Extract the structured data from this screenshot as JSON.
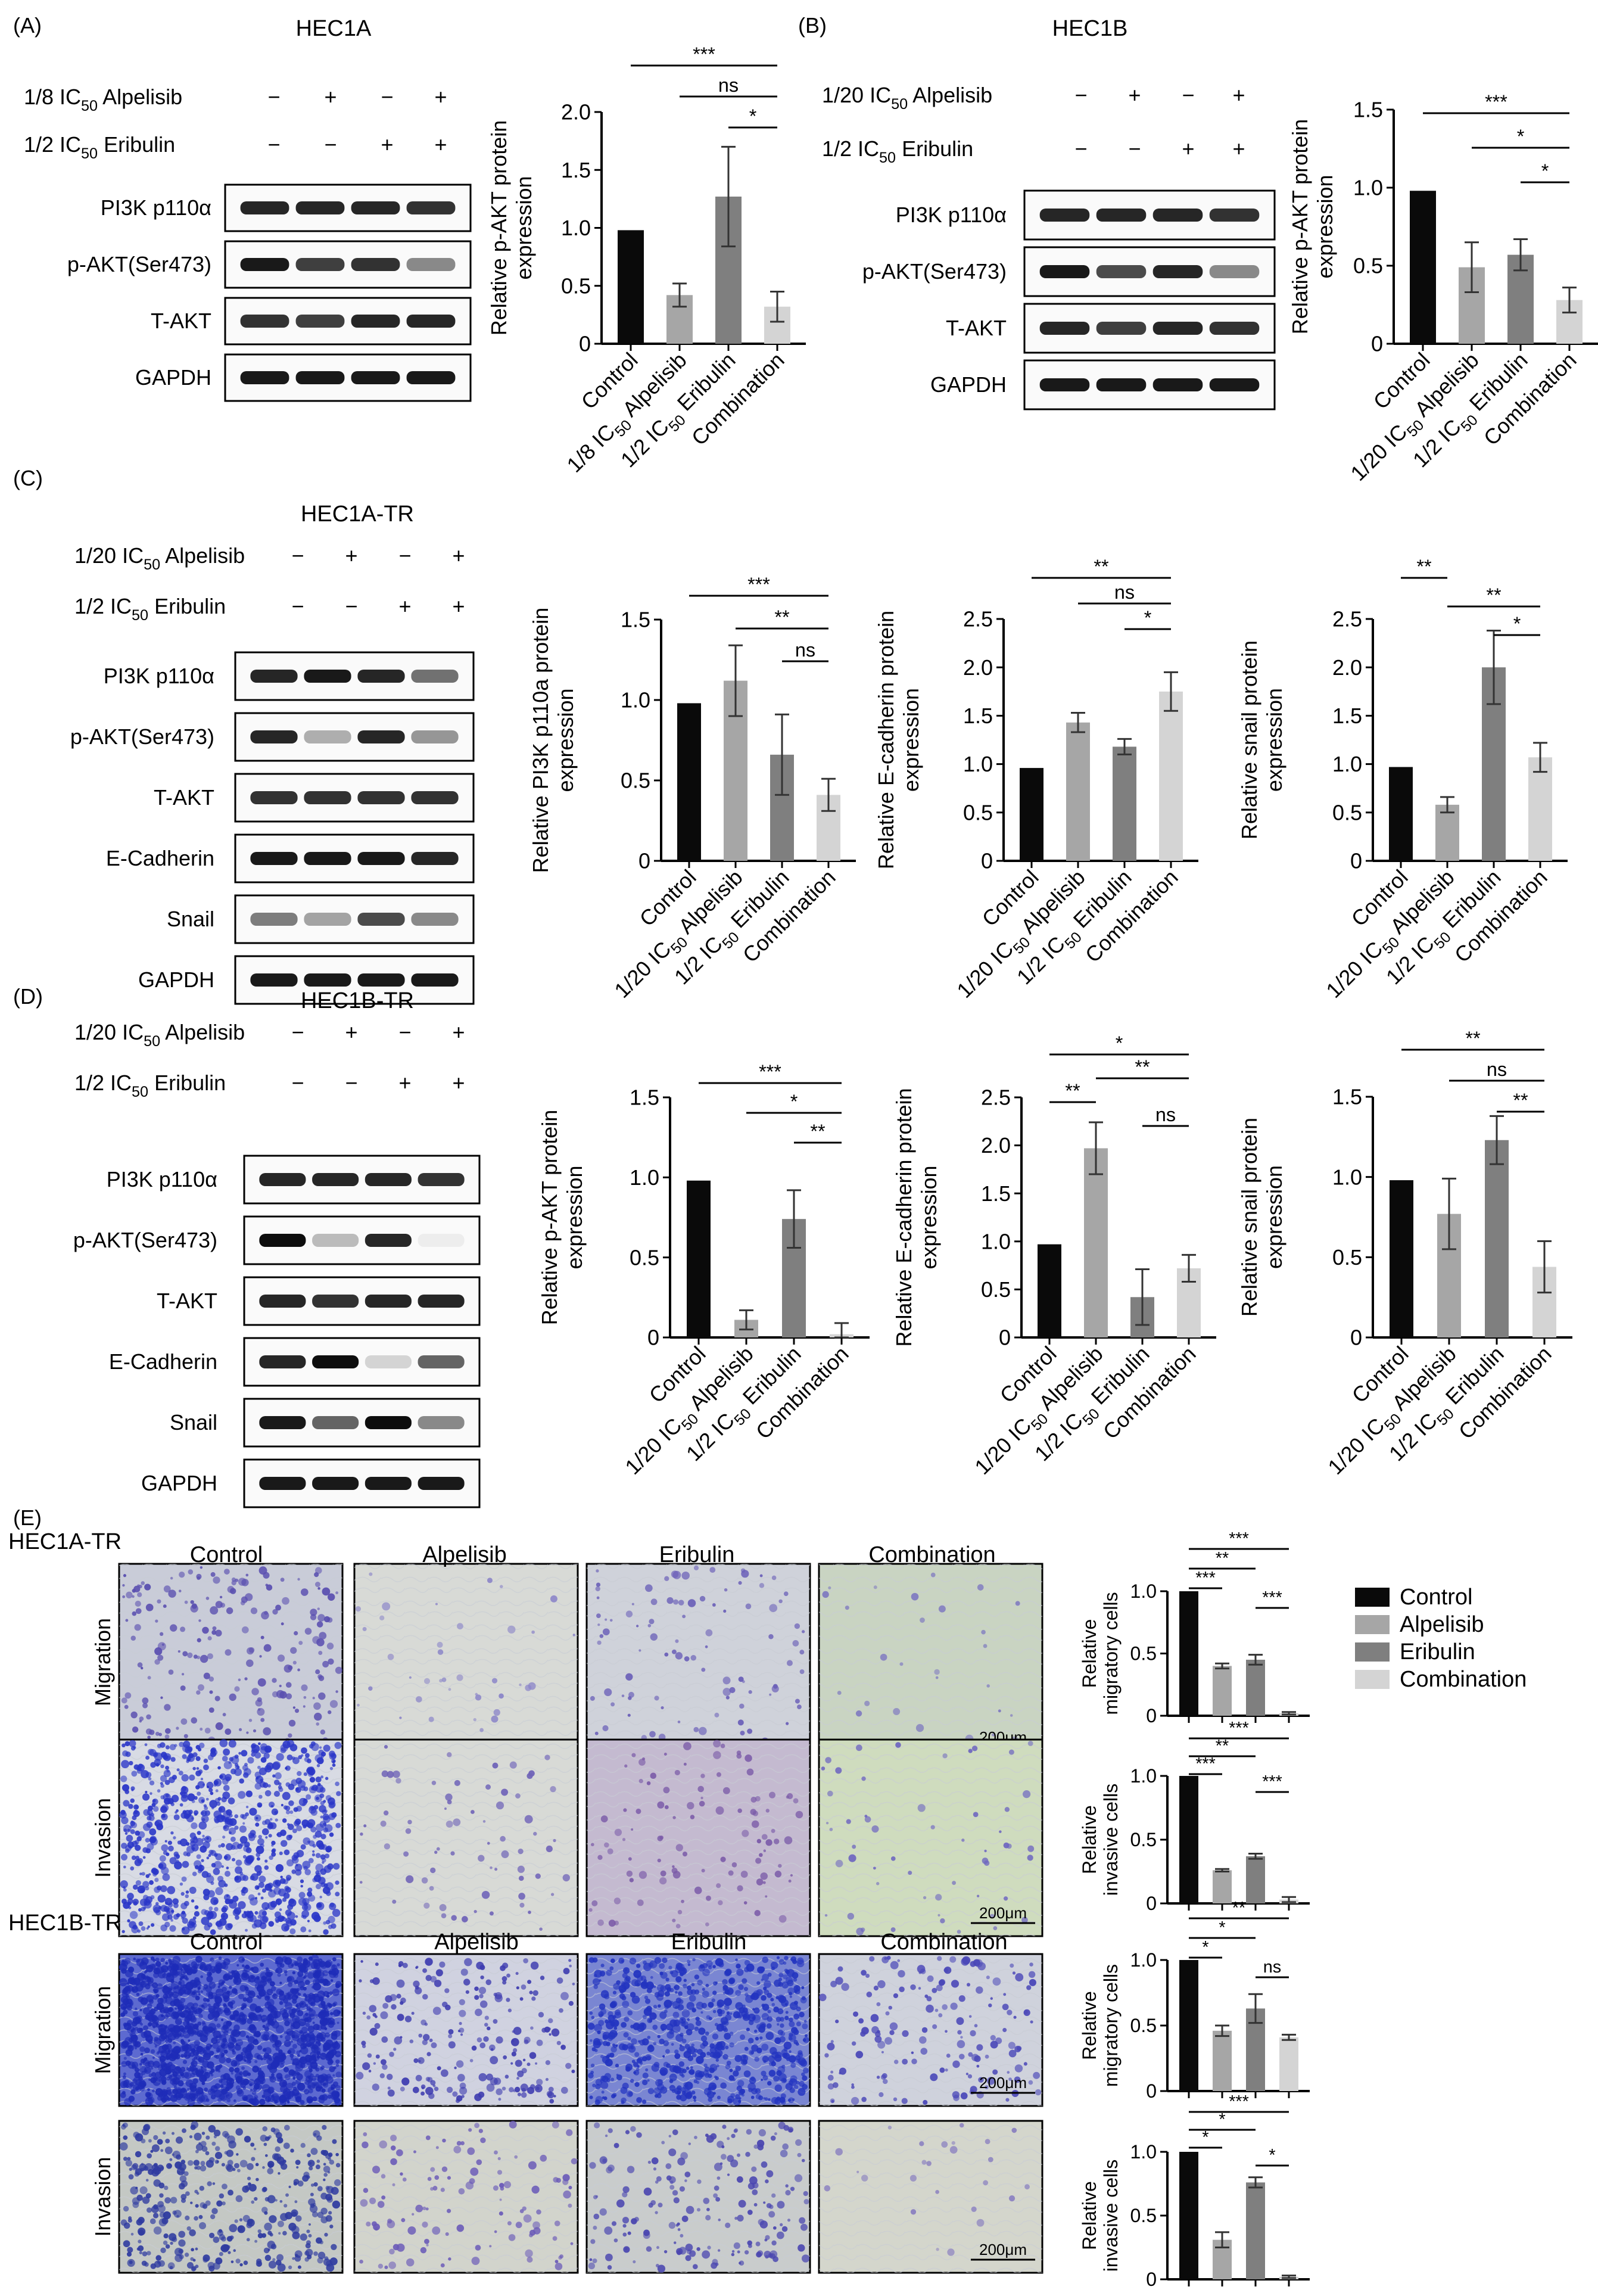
{
  "panels": {
    "A": {
      "label": "(A)",
      "title": "HEC1A",
      "treatments": [
        {
          "pre": "1/8 IC",
          "sub": "50",
          "post": " Alpelisib",
          "signs": [
            "−",
            "+",
            "−",
            "+"
          ]
        },
        {
          "pre": "1/2 IC",
          "sub": "50",
          "post": " Eribulin",
          "signs": [
            "−",
            "−",
            "+",
            "+"
          ]
        }
      ],
      "blots": [
        "PI3K p110α",
        "p-AKT(Ser473)",
        "T-AKT",
        "GAPDH"
      ]
    },
    "B": {
      "label": "(B)",
      "title": "HEC1B",
      "treatments": [
        {
          "pre": "1/20 IC",
          "sub": "50",
          "post": " Alpelisib",
          "signs": [
            "−",
            "+",
            "−",
            "+"
          ]
        },
        {
          "pre": "1/2 IC",
          "sub": "50",
          "post": " Eribulin",
          "signs": [
            "−",
            "−",
            "+",
            "+"
          ]
        }
      ],
      "blots": [
        "PI3K p110α",
        "p-AKT(Ser473)",
        "T-AKT",
        "GAPDH"
      ]
    },
    "C": {
      "label": "(C)",
      "title": "HEC1A-TR",
      "treatments": [
        {
          "pre": "1/20 IC",
          "sub": "50",
          "post": " Alpelisib",
          "signs": [
            "−",
            "+",
            "−",
            "+"
          ]
        },
        {
          "pre": "1/2 IC",
          "sub": "50",
          "post": " Eribulin",
          "signs": [
            "−",
            "−",
            "+",
            "+"
          ]
        }
      ],
      "blots": [
        "PI3K p110α",
        "p-AKT(Ser473)",
        "T-AKT",
        "E-Cadherin",
        "Snail",
        "GAPDH"
      ]
    },
    "D": {
      "label": "(D)",
      "title": "HEC1B-TR",
      "treatments": [
        {
          "pre": "1/20 IC",
          "sub": "50",
          "post": " Alpelisib",
          "signs": [
            "−",
            "+",
            "−",
            "+"
          ]
        },
        {
          "pre": "1/2 IC",
          "sub": "50",
          "post": " Eribulin",
          "signs": [
            "−",
            "−",
            "+",
            "+"
          ]
        }
      ],
      "blots": [
        "PI3K p110α",
        "p-AKT(Ser473)",
        "T-AKT",
        "E-Cadherin",
        "Snail",
        "GAPDH"
      ]
    },
    "E": {
      "label": "(E)",
      "cell_lines": [
        "HEC1A-TR",
        "HEC1B-TR"
      ],
      "columns": [
        "Control",
        "Alpelisib",
        "Eribulin",
        "Combination"
      ],
      "rows": [
        "Migration",
        "Invasion"
      ],
      "scale_bar": "200μm"
    }
  },
  "legend": [
    "Control",
    "Alpelisib",
    "Eribulin",
    "Combination"
  ],
  "colors": {
    "control": "#0a0a0a",
    "alpelisib": "#a6a6a6",
    "eribulin": "#7f7f7f",
    "combination": "#d4d4d4"
  },
  "chart_data": [
    {
      "id": "A1",
      "type": "bar",
      "ylabel": [
        "Relative p-AKT protein",
        "expression"
      ],
      "categories": [
        "Control",
        "1/8 IC50 Alpelisib",
        "1/2 IC50 Eribulin",
        "Combination"
      ],
      "values": [
        0.98,
        0.42,
        1.27,
        0.32
      ],
      "errors": [
        0,
        0.1,
        0.43,
        0.13
      ],
      "ylim": [
        0,
        2
      ],
      "yticks": [
        "0",
        "0.5",
        "1.0",
        "1.5",
        "2.0"
      ],
      "significance": [
        {
          "from": 0,
          "to": 3,
          "label": "***"
        },
        {
          "from": 1,
          "to": 3,
          "label": "ns"
        },
        {
          "from": 2,
          "to": 3,
          "label": "*"
        }
      ]
    },
    {
      "id": "B1",
      "type": "bar",
      "ylabel": [
        "Relative p-AKT protein",
        "expression"
      ],
      "categories": [
        "Control",
        "1/20 IC50 Alpelisib",
        "1/2 IC50 Eribulin",
        "Combination"
      ],
      "values": [
        0.98,
        0.49,
        0.57,
        0.28
      ],
      "errors": [
        0,
        0.16,
        0.1,
        0.08
      ],
      "ylim": [
        0,
        1.5
      ],
      "yticks": [
        "0",
        "0.5",
        "1.0",
        "1.5"
      ],
      "significance": [
        {
          "from": 0,
          "to": 3,
          "label": "***"
        },
        {
          "from": 1,
          "to": 3,
          "label": "*"
        },
        {
          "from": 2,
          "to": 3,
          "label": "*"
        }
      ]
    },
    {
      "id": "C1",
      "type": "bar",
      "ylabel": [
        "Relative PI3K p110a protein",
        "expression"
      ],
      "categories": [
        "Control",
        "1/20 IC50 Alpelisib",
        "1/2 IC50 Eribulin",
        "Combination"
      ],
      "values": [
        0.98,
        1.12,
        0.66,
        0.41
      ],
      "errors": [
        0,
        0.22,
        0.25,
        0.1
      ],
      "ylim": [
        0,
        1.5
      ],
      "yticks": [
        "0",
        "0.5",
        "1.0",
        "1.5"
      ],
      "significance": [
        {
          "from": 0,
          "to": 3,
          "label": "***"
        },
        {
          "from": 1,
          "to": 3,
          "label": "**"
        },
        {
          "from": 2,
          "to": 3,
          "label": "ns"
        }
      ]
    },
    {
      "id": "C2",
      "type": "bar",
      "ylabel": [
        "Relative E-cadherin protein",
        "expression"
      ],
      "categories": [
        "Control",
        "1/20 IC50 Alpelisib",
        "1/2 IC50 Eribulin",
        "Combination"
      ],
      "values": [
        0.96,
        1.43,
        1.18,
        1.75
      ],
      "errors": [
        0,
        0.1,
        0.08,
        0.2
      ],
      "ylim": [
        0,
        2.5
      ],
      "yticks": [
        "0",
        "0.5",
        "1.0",
        "1.5",
        "2.0",
        "2.5"
      ],
      "significance": [
        {
          "from": 0,
          "to": 3,
          "label": "**"
        },
        {
          "from": 1,
          "to": 3,
          "label": "ns"
        },
        {
          "from": 2,
          "to": 3,
          "label": "*"
        }
      ]
    },
    {
      "id": "C3",
      "type": "bar",
      "ylabel": [
        "Relative snail protein",
        "expression"
      ],
      "categories": [
        "Control",
        "1/20 IC50 Alpelisib",
        "1/2 IC50 Eribulin",
        "Combination"
      ],
      "values": [
        0.97,
        0.58,
        2.0,
        1.07
      ],
      "errors": [
        0,
        0.08,
        0.38,
        0.15
      ],
      "ylim": [
        0,
        2.5
      ],
      "yticks": [
        "0",
        "0.5",
        "1.0",
        "1.5",
        "2.0",
        "2.5"
      ],
      "significance": [
        {
          "from": 0,
          "to": 1,
          "label": "**"
        },
        {
          "from": 1,
          "to": 3,
          "label": "**"
        },
        {
          "from": 2,
          "to": 3,
          "label": "*"
        }
      ]
    },
    {
      "id": "D1",
      "type": "bar",
      "ylabel": [
        "Relative p-AKT protein",
        "expression"
      ],
      "categories": [
        "Control",
        "1/20 IC50 Alpelisib",
        "1/2 IC50 Eribulin",
        "Combination"
      ],
      "values": [
        0.98,
        0.11,
        0.74,
        0.02
      ],
      "errors": [
        0,
        0.06,
        0.18,
        0.07
      ],
      "ylim": [
        0,
        1.5
      ],
      "yticks": [
        "0",
        "0.5",
        "1.0",
        "1.5"
      ],
      "significance": [
        {
          "from": 0,
          "to": 3,
          "label": "***"
        },
        {
          "from": 1,
          "to": 3,
          "label": "*"
        },
        {
          "from": 2,
          "to": 3,
          "label": "**"
        }
      ]
    },
    {
      "id": "D2",
      "type": "bar",
      "ylabel": [
        "Relative E-cadherin protein",
        "expression"
      ],
      "categories": [
        "Control",
        "1/20 IC50 Alpelisib",
        "1/2 IC50 Eribulin",
        "Combination"
      ],
      "values": [
        0.97,
        1.97,
        0.42,
        0.72
      ],
      "errors": [
        0,
        0.27,
        0.29,
        0.14
      ],
      "ylim": [
        0,
        2.5
      ],
      "yticks": [
        "0",
        "0.5",
        "1.0",
        "1.5",
        "2.0",
        "2.5"
      ],
      "significance": [
        {
          "from": 0,
          "to": 3,
          "label": "*"
        },
        {
          "from": 1,
          "to": 3,
          "label": "**"
        },
        {
          "from": 0,
          "to": 1,
          "label": "**"
        },
        {
          "from": 2,
          "to": 3,
          "label": "ns"
        }
      ]
    },
    {
      "id": "D3",
      "type": "bar",
      "ylabel": [
        "Relative snail protein",
        "expression"
      ],
      "categories": [
        "Control",
        "1/20 IC50 Alpelisib",
        "1/2 IC50 Eribulin",
        "Combination"
      ],
      "values": [
        0.98,
        0.77,
        1.23,
        0.44
      ],
      "errors": [
        0,
        0.22,
        0.15,
        0.16
      ],
      "ylim": [
        0,
        1.5
      ],
      "yticks": [
        "0",
        "0.5",
        "1.0",
        "1.5"
      ],
      "significance": [
        {
          "from": 0,
          "to": 3,
          "label": "**"
        },
        {
          "from": 1,
          "to": 3,
          "label": "ns"
        },
        {
          "from": 2,
          "to": 3,
          "label": "**"
        }
      ]
    },
    {
      "id": "E1",
      "type": "bar",
      "ylabel": [
        "Relative",
        "migratory cells"
      ],
      "categories": [
        "Control",
        "Alpelisib",
        "Eribulin",
        "Combination"
      ],
      "values": [
        1.0,
        0.4,
        0.45,
        0.02
      ],
      "errors": [
        0,
        0.02,
        0.04,
        0.01
      ],
      "ylim": [
        0,
        1
      ],
      "yticks": [
        "0",
        "0.5",
        "1.0"
      ],
      "significance": [
        {
          "from": 0,
          "to": 3,
          "label": "***"
        },
        {
          "from": 0,
          "to": 2,
          "label": "**"
        },
        {
          "from": 0,
          "to": 1,
          "label": "***"
        },
        {
          "from": 2,
          "to": 3,
          "label": "***"
        }
      ]
    },
    {
      "id": "E2",
      "type": "bar",
      "ylabel": [
        "Relative",
        "invasive cells"
      ],
      "categories": [
        "Control",
        "Alpelisib",
        "Eribulin",
        "Combination"
      ],
      "values": [
        1.0,
        0.26,
        0.37,
        0.03
      ],
      "errors": [
        0,
        0.01,
        0.02,
        0.02
      ],
      "ylim": [
        0,
        1
      ],
      "yticks": [
        "0",
        "0.5",
        "1.0"
      ],
      "significance": [
        {
          "from": 0,
          "to": 3,
          "label": "***"
        },
        {
          "from": 0,
          "to": 2,
          "label": "**"
        },
        {
          "from": 0,
          "to": 1,
          "label": "***"
        },
        {
          "from": 2,
          "to": 3,
          "label": "***"
        }
      ]
    },
    {
      "id": "E3",
      "type": "bar",
      "ylabel": [
        "Relative",
        "migratory cells"
      ],
      "categories": [
        "Control",
        "Alpelisib",
        "Eribulin",
        "Combination"
      ],
      "values": [
        1.0,
        0.46,
        0.63,
        0.41
      ],
      "errors": [
        0,
        0.04,
        0.11,
        0.02
      ],
      "ylim": [
        0,
        1
      ],
      "yticks": [
        "0",
        "0.5",
        "1.0"
      ],
      "significance": [
        {
          "from": 0,
          "to": 3,
          "label": "**"
        },
        {
          "from": 0,
          "to": 2,
          "label": "*"
        },
        {
          "from": 0,
          "to": 1,
          "label": "*"
        },
        {
          "from": 2,
          "to": 3,
          "label": "ns"
        }
      ]
    },
    {
      "id": "E4",
      "type": "bar",
      "ylabel": [
        "Relative",
        "invasive cells"
      ],
      "categories": [
        "Control",
        "Alpelisib",
        "Eribulin",
        "Combination"
      ],
      "values": [
        1.0,
        0.31,
        0.76,
        0.02
      ],
      "errors": [
        0,
        0.06,
        0.04,
        0.01
      ],
      "ylim": [
        0,
        1
      ],
      "yticks": [
        "0",
        "0.5",
        "1.0"
      ],
      "significance": [
        {
          "from": 0,
          "to": 3,
          "label": "***"
        },
        {
          "from": 0,
          "to": 2,
          "label": "*"
        },
        {
          "from": 0,
          "to": 1,
          "label": "*"
        },
        {
          "from": 2,
          "to": 3,
          "label": "*"
        }
      ]
    }
  ]
}
